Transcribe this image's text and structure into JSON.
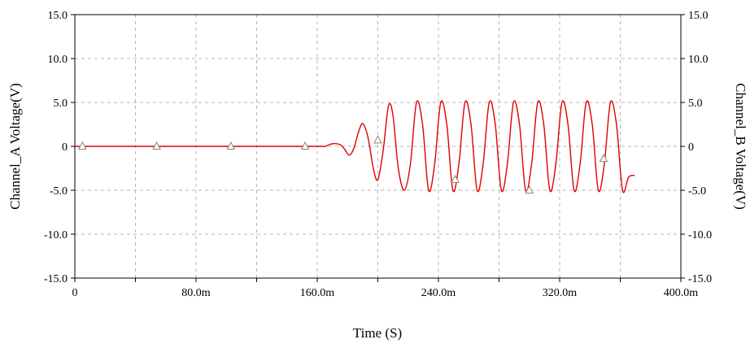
{
  "chart_data": {
    "type": "line",
    "title": "",
    "xlabel": "Time (S)",
    "ylabel_left": "Channel_A Voltage(V)",
    "ylabel_right": "Channel_B Voltage(V)",
    "xlim": [
      0,
      0.4
    ],
    "ylim": [
      -15,
      15
    ],
    "grid": true,
    "legend": "none",
    "x_ticks": [
      {
        "value": 0,
        "label": "0"
      },
      {
        "value": 0.04,
        "label": ""
      },
      {
        "value": 0.08,
        "label": "80.0m"
      },
      {
        "value": 0.12,
        "label": ""
      },
      {
        "value": 0.16,
        "label": "160.0m"
      },
      {
        "value": 0.2,
        "label": ""
      },
      {
        "value": 0.24,
        "label": "240.0m"
      },
      {
        "value": 0.28,
        "label": ""
      },
      {
        "value": 0.32,
        "label": "320.0m"
      },
      {
        "value": 0.36,
        "label": ""
      },
      {
        "value": 0.4,
        "label": "400.0m"
      }
    ],
    "y_ticks_left": [
      {
        "value": 15,
        "label": "15.0"
      },
      {
        "value": 10,
        "label": "10.0"
      },
      {
        "value": 5,
        "label": "5.0"
      },
      {
        "value": 0,
        "label": "0"
      },
      {
        "value": -5,
        "label": "-5.0"
      },
      {
        "value": -10,
        "label": "-10.0"
      },
      {
        "value": -15,
        "label": "-15.0"
      }
    ],
    "y_ticks_right": [
      {
        "value": 15,
        "label": "15.0"
      },
      {
        "value": 10,
        "label": "10.0"
      },
      {
        "value": 5,
        "label": "5.0"
      },
      {
        "value": 0,
        "label": "0"
      },
      {
        "value": -5,
        "label": "-5.0"
      },
      {
        "value": -10,
        "label": "-10.0"
      },
      {
        "value": -15,
        "label": "-15.0"
      }
    ],
    "series": [
      {
        "color": "#e00000",
        "x": [
          0.0,
          0.04,
          0.08,
          0.12,
          0.16,
          0.165,
          0.17,
          0.175,
          0.178,
          0.181,
          0.184,
          0.187,
          0.19,
          0.1935,
          0.197,
          0.2,
          0.2035,
          0.207,
          0.21,
          0.2135,
          0.2175,
          0.2215,
          0.2255,
          0.2295,
          0.2335,
          0.2375,
          0.2415,
          0.2455,
          0.2495,
          0.2535,
          0.2575,
          0.2615,
          0.2655,
          0.2695,
          0.2735,
          0.2775,
          0.2815,
          0.2855,
          0.2895,
          0.2935,
          0.2975,
          0.3015,
          0.3055,
          0.3095,
          0.3135,
          0.3175,
          0.3215,
          0.3255,
          0.3295,
          0.3335,
          0.3375,
          0.3415,
          0.3455,
          0.3495,
          0.3535,
          0.3575,
          0.3615,
          0.3655,
          0.3695
        ],
        "y": [
          0.0,
          0.0,
          0.0,
          0.0,
          0.0,
          0.0,
          0.3,
          0.2,
          -0.3,
          -1.0,
          -0.3,
          1.5,
          2.6,
          1.0,
          -2.5,
          -3.8,
          -0.5,
          4.6,
          3.5,
          -2.5,
          -5.0,
          -2.0,
          5.0,
          2.5,
          -5.0,
          -2.0,
          5.0,
          2.5,
          -5.0,
          -2.0,
          5.0,
          2.5,
          -5.0,
          -2.0,
          5.0,
          2.5,
          -5.0,
          -2.0,
          5.0,
          2.5,
          -5.0,
          -2.0,
          5.0,
          2.5,
          -5.0,
          -2.0,
          5.0,
          2.5,
          -5.0,
          -2.0,
          5.0,
          2.5,
          -5.0,
          -2.0,
          5.0,
          2.5,
          -5.0,
          -3.5,
          -3.3
        ]
      }
    ],
    "markers": {
      "color": "#888888",
      "x": [
        0.005,
        0.054,
        0.103,
        0.152,
        0.2,
        0.251,
        0.3,
        0.349
      ],
      "y": [
        0.0,
        0.0,
        0.0,
        0.0,
        0.7,
        -3.8,
        -5.0,
        -1.4
      ]
    }
  }
}
